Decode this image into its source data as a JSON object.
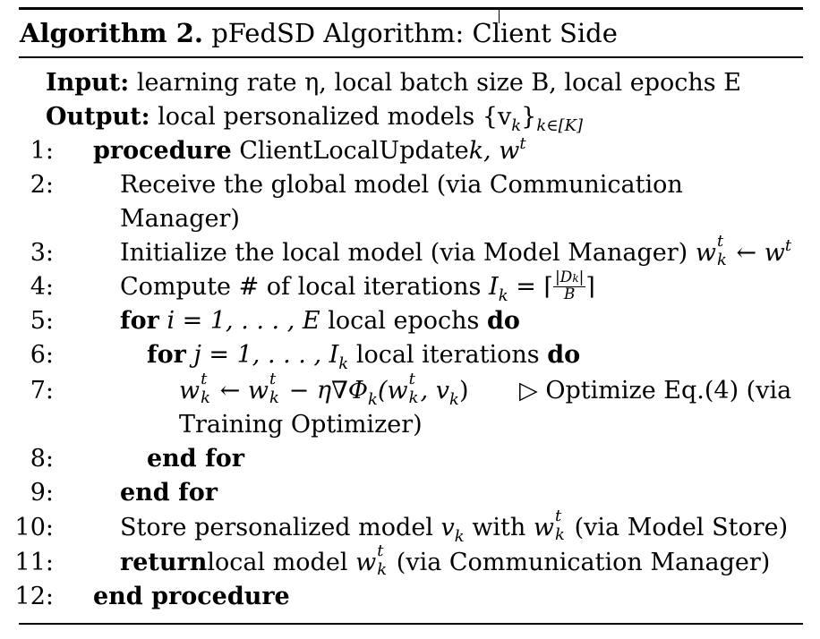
{
  "title": {
    "number": "Algorithm 2.",
    "name": "pFedSD Algorithm: Client Side"
  },
  "io": {
    "input_label": "Input:",
    "input_text": "learning rate η, local batch size B, local epochs E",
    "output_label": "Output:",
    "output_text": "local personalized models {v",
    "output_sub": "k",
    "output_close": "}",
    "output_index": "k∈[K]"
  },
  "lines": [
    {
      "num": "1:",
      "kw": "procedure",
      "text": "ClientLocalUpdate",
      "math": "k, w",
      "sup": "t"
    },
    {
      "num": "2:",
      "text": "Receive the global model (via Communication"
    },
    {
      "num": "",
      "text": "Manager)"
    },
    {
      "num": "3:",
      "text": "Initialize the local model (via Model Manager)",
      "math_lhs": "w",
      "lhs_sup": "t",
      "lhs_sub": "k",
      "arrow": "←",
      "math_rhs": "w",
      "rhs_sup": "t"
    },
    {
      "num": "4:",
      "text": "Compute # of local iterations",
      "math": "I",
      "sub": "k",
      "eq": "= ⌈",
      "frac_num": "|D",
      "frac_num_sub": "k",
      "frac_num_close": "|",
      "frac_den": "B",
      "close": "⌉"
    },
    {
      "num": "5:",
      "kw": "for",
      "math": "i = 1, . . . , E",
      "text": "local epochs",
      "kw2": "do"
    },
    {
      "num": "6:",
      "kw": "for",
      "math": "j = 1, . . . , I",
      "sub": "k",
      "text": "local iterations",
      "kw2": "do"
    },
    {
      "num": "7:",
      "expr": "← w",
      "expr2": "− η∇Φ",
      "expr3": "(w",
      "expr4": ", v",
      "expr5": ")",
      "comment": "▷ Optimize Eq.(4) (via"
    },
    {
      "num": "",
      "text": "Training Optimizer)"
    },
    {
      "num": "8:",
      "kw": "end for"
    },
    {
      "num": "9:",
      "kw": "end for"
    },
    {
      "num": "10:",
      "text": "Store personalized model",
      "math": "v",
      "sub": "k",
      "text2": "with",
      "text3": "(via Model Store)"
    },
    {
      "num": "11:",
      "kw": "return",
      "text": "local model",
      "text2": "(via Communication Manager)"
    },
    {
      "num": "12:",
      "kw": "end procedure"
    }
  ]
}
